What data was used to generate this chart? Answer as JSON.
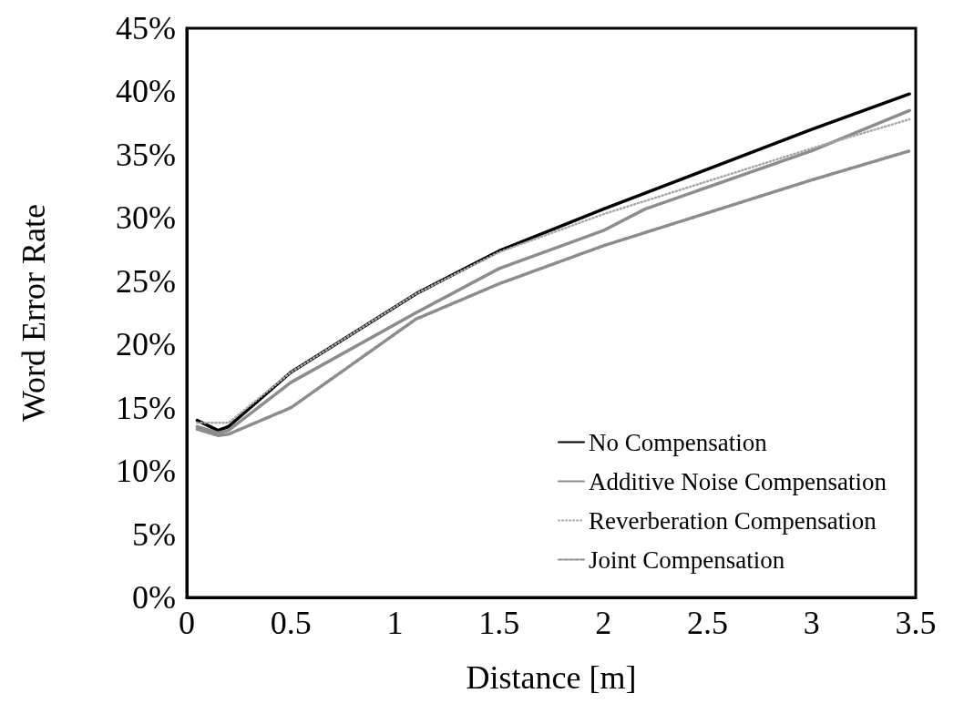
{
  "chart_data": {
    "type": "line",
    "xlabel": "Distance [m]",
    "ylabel": "Word Error Rate",
    "xlim": [
      0,
      3.5
    ],
    "xticks": [
      0,
      0.5,
      1,
      1.5,
      2,
      2.5,
      3,
      3.5
    ],
    "ylim": [
      0,
      45
    ],
    "yticks": [
      {
        "value": 0,
        "label": "0%"
      },
      {
        "value": 5,
        "label": "5%"
      },
      {
        "value": 10,
        "label": "10%"
      },
      {
        "value": 15,
        "label": "15%"
      },
      {
        "value": 20,
        "label": "20%"
      },
      {
        "value": 25,
        "label": "25%"
      },
      {
        "value": 30,
        "label": "30%"
      },
      {
        "value": 35,
        "label": "35%"
      },
      {
        "value": 40,
        "label": "40%"
      },
      {
        "value": 45,
        "label": "45%"
      }
    ],
    "grid": false,
    "legend": "bottom right",
    "marker": "none",
    "x": [
      0.05,
      0.15,
      0.2,
      0.5,
      1.1,
      1.5,
      2.0,
      3.0,
      3.47
    ],
    "series": [
      {
        "name": "No Compensation",
        "color": "#000000",
        "line_style": "solid",
        "values": [
          14.0,
          13.2,
          13.5,
          17.8,
          24.0,
          27.4,
          30.7,
          37.0,
          39.8
        ]
      },
      {
        "name": "Additive Noise Compensation",
        "color": "#8c8c8c",
        "line_style": "solid",
        "x": [
          0.05,
          0.15,
          0.2,
          0.5,
          1.1,
          1.5,
          2.0,
          2.2,
          3.0,
          3.47
        ],
        "values": [
          13.5,
          13.0,
          13.2,
          17.0,
          22.5,
          26.0,
          29.0,
          30.7,
          35.3,
          38.5
        ]
      },
      {
        "name": "Reverberation Compensation",
        "color": "#a6a6a6",
        "line_style": "dotted",
        "values": [
          13.8,
          13.8,
          13.8,
          17.8,
          24.0,
          27.3,
          30.3,
          35.5,
          37.8
        ]
      },
      {
        "name": "Joint Compensation",
        "color": "#8c8c8c",
        "line_style": "dashed",
        "values": [
          13.3,
          12.8,
          12.9,
          15.0,
          22.0,
          24.8,
          27.8,
          33.0,
          35.3
        ]
      }
    ]
  }
}
